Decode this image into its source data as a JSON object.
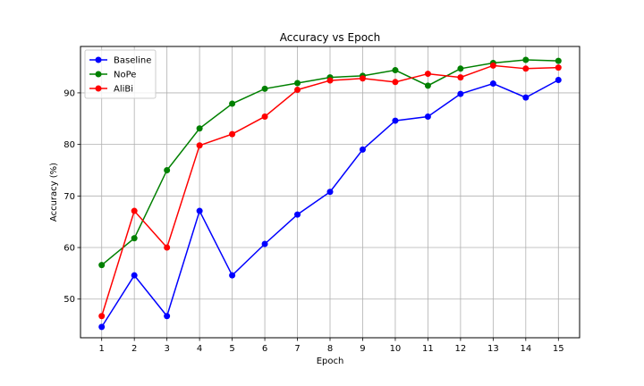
{
  "chart_data": {
    "type": "line",
    "title": "Accuracy vs Epoch",
    "xlabel": "Epoch",
    "ylabel": "Accuracy (%)",
    "x": [
      1,
      2,
      3,
      4,
      5,
      6,
      7,
      8,
      9,
      10,
      11,
      12,
      13,
      14,
      15
    ],
    "xlim": [
      0.35,
      15.65
    ],
    "ylim": [
      42.5,
      99.0
    ],
    "yticks": [
      50,
      60,
      70,
      80,
      90
    ],
    "grid": true,
    "legend_position": "top-left",
    "series": [
      {
        "name": "Baseline",
        "color": "#0000ff",
        "values": [
          44.6,
          54.6,
          46.7,
          67.1,
          54.6,
          60.7,
          66.4,
          70.8,
          79.0,
          84.6,
          85.4,
          89.8,
          91.8,
          89.1,
          92.5
        ]
      },
      {
        "name": "NoPe",
        "color": "#008000",
        "values": [
          56.6,
          61.8,
          75.0,
          83.1,
          87.9,
          90.8,
          91.9,
          93.0,
          93.3,
          94.4,
          91.4,
          94.7,
          95.8,
          96.4,
          96.2
        ]
      },
      {
        "name": "AliBi",
        "color": "#ff0000",
        "values": [
          46.7,
          67.1,
          60.0,
          79.8,
          82.0,
          85.4,
          90.6,
          92.4,
          92.8,
          92.1,
          93.7,
          93.0,
          95.3,
          94.7,
          94.9
        ]
      }
    ]
  }
}
